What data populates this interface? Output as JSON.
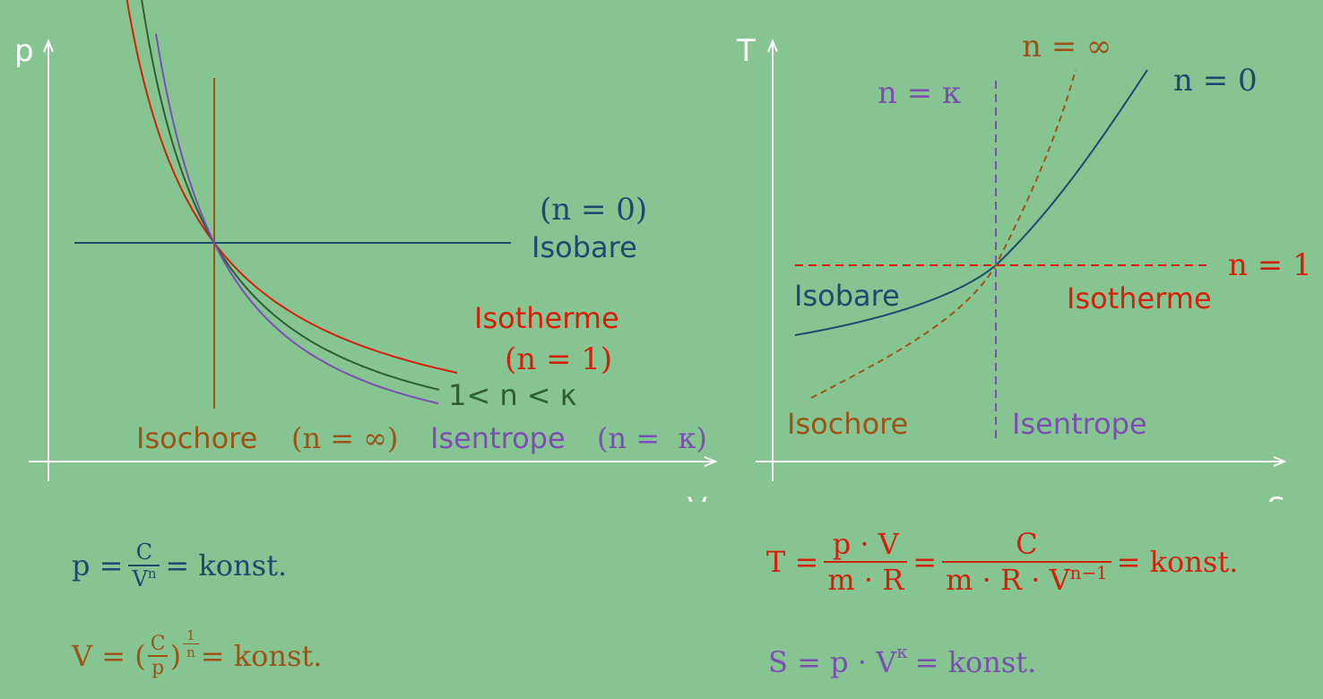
{
  "colors": {
    "background": "#86c591",
    "axis": "#ffffff",
    "isobare": "#1a4a6e",
    "isotherme": "#d41f0c",
    "polytrope": "#2f5e34",
    "isochore": "#9a5418",
    "isentrope": "#7b4fb0"
  },
  "pv_diagram": {
    "y_axis_label": "p",
    "x_axis_label": "V",
    "isobare_n": "(n = 0)",
    "isobare_label": "Isobare",
    "isotherme_label": "Isotherme",
    "isotherme_n": "(n = 1)",
    "polytrope_label": "1< n < κ",
    "isochore_label": "Isochore",
    "isochore_n": "(n = ∞)",
    "isentrope_label": "Isentrope",
    "isentrope_n": "(n =  κ)"
  },
  "ts_diagram": {
    "y_axis_label": "T",
    "x_axis_label": "S",
    "isochore_n": "n = ∞",
    "isentrope_n": "n = κ",
    "isobare_n": "n = 0",
    "isotherme_n": "n = 1",
    "isobare_label": "Isobare",
    "isotherme_label": "Isotherme",
    "isochore_label": "Isochore",
    "isentrope_label": "Isentrope"
  },
  "formulas": {
    "isobare": {
      "lhs": "p =",
      "num": "C",
      "den_base": "V",
      "den_exp": "n",
      "rhs": "= konst."
    },
    "isochore": {
      "lhs": "V = (",
      "num": "C",
      "den": "p",
      "close": ")",
      "exp_num": "1",
      "exp_den": "n",
      "rhs": "= konst."
    },
    "isotherme": {
      "lhs": "T =",
      "num1": "p · V",
      "den1": "m · R",
      "eq": "=",
      "num2": "C",
      "den2_base": "m · R · V",
      "den2_exp": "n−1",
      "rhs": "= konst."
    },
    "isentrope": {
      "lhs": "S = p · V",
      "exp": "κ",
      "rhs": "= konst."
    }
  }
}
